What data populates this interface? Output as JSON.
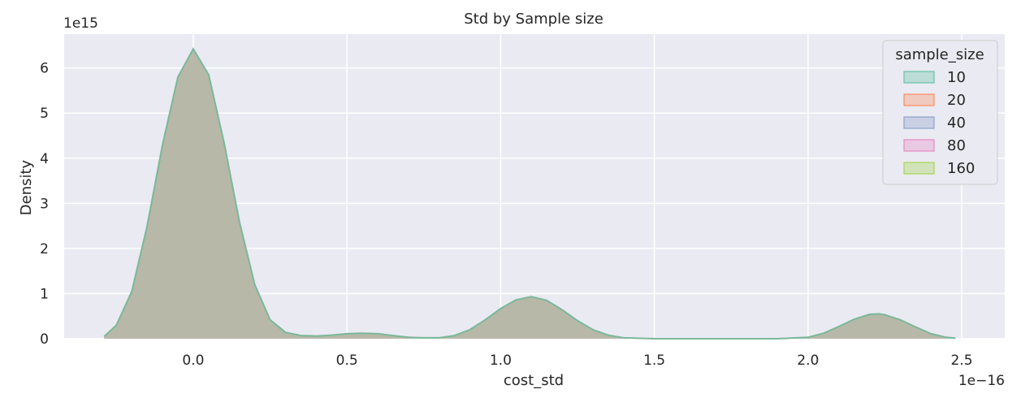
{
  "chart_data": {
    "type": "area",
    "chart_kind": "kde",
    "title": "Std by Sample size",
    "xlabel": "cost_std",
    "ylabel": "Density",
    "x_scale_label": "1e−16",
    "y_scale_label": "1e15",
    "x_ticks": [
      "0.0",
      "0.5",
      "1.0",
      "1.5",
      "2.0",
      "2.5"
    ],
    "y_ticks": [
      "0",
      "1",
      "2",
      "3",
      "4",
      "5",
      "6"
    ],
    "xlim": [
      -0.42,
      2.64
    ],
    "ylim": [
      0,
      6.75
    ],
    "grid": true,
    "legend": {
      "title": "sample_size",
      "placement": "top-right",
      "entries": [
        "10",
        "20",
        "40",
        "80",
        "160"
      ]
    },
    "series": [
      {
        "name": "10",
        "color": "#66c2a5",
        "points": [
          [
            -0.29,
            0.05
          ],
          [
            -0.25,
            0.3
          ],
          [
            -0.2,
            1.05
          ],
          [
            -0.15,
            2.5
          ],
          [
            -0.1,
            4.3
          ],
          [
            -0.05,
            5.8
          ],
          [
            0.0,
            6.42
          ],
          [
            0.05,
            5.85
          ],
          [
            0.1,
            4.35
          ],
          [
            0.15,
            2.6
          ],
          [
            0.2,
            1.2
          ],
          [
            0.25,
            0.42
          ],
          [
            0.3,
            0.14
          ],
          [
            0.35,
            0.07
          ],
          [
            0.4,
            0.06
          ],
          [
            0.45,
            0.08
          ],
          [
            0.5,
            0.11
          ],
          [
            0.55,
            0.12
          ],
          [
            0.6,
            0.11
          ],
          [
            0.65,
            0.07
          ],
          [
            0.7,
            0.03
          ],
          [
            0.75,
            0.02
          ],
          [
            0.8,
            0.02
          ],
          [
            0.85,
            0.07
          ],
          [
            0.9,
            0.2
          ],
          [
            0.95,
            0.42
          ],
          [
            1.0,
            0.67
          ],
          [
            1.05,
            0.86
          ],
          [
            1.1,
            0.93
          ],
          [
            1.15,
            0.85
          ],
          [
            1.2,
            0.64
          ],
          [
            1.25,
            0.4
          ],
          [
            1.3,
            0.2
          ],
          [
            1.35,
            0.08
          ],
          [
            1.4,
            0.02
          ],
          [
            1.5,
            0.0
          ],
          [
            1.7,
            0.0
          ],
          [
            1.9,
            0.0
          ],
          [
            2.0,
            0.03
          ],
          [
            2.05,
            0.12
          ],
          [
            2.1,
            0.27
          ],
          [
            2.15,
            0.43
          ],
          [
            2.2,
            0.54
          ],
          [
            2.23,
            0.55
          ],
          [
            2.25,
            0.53
          ],
          [
            2.3,
            0.42
          ],
          [
            2.35,
            0.26
          ],
          [
            2.4,
            0.11
          ],
          [
            2.45,
            0.03
          ],
          [
            2.48,
            0.01
          ]
        ]
      },
      {
        "name": "20",
        "color": "#fc8d62"
      },
      {
        "name": "40",
        "color": "#8da0cb"
      },
      {
        "name": "80",
        "color": "#e78ac3"
      },
      {
        "name": "160",
        "color": "#a6d854"
      }
    ],
    "colors": {
      "plot_background": "#eaeaf2",
      "grid": "#ffffff",
      "overlap_fill": "#b7b8a8",
      "outline": "#7ab89a"
    }
  }
}
